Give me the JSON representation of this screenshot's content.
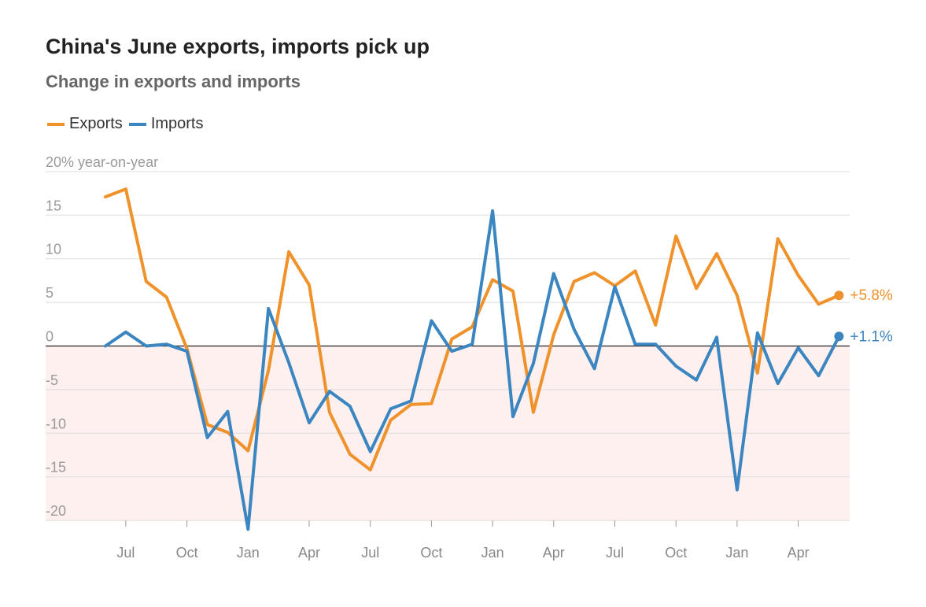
{
  "title": "China's June exports, imports pick up",
  "subtitle": "Change in exports and imports",
  "legend": {
    "exports": "Exports",
    "imports": "Imports"
  },
  "colors": {
    "exports": "#f0922b",
    "imports": "#3b86c0",
    "negative_band": "#fdf0ef",
    "zero_line": "#222222",
    "grid": "#dddddd"
  },
  "end_labels": {
    "exports": "+5.8%",
    "imports": "+1.1%"
  },
  "chart_data": {
    "type": "line",
    "ylabel": "20% year-on-year",
    "ylim": [
      -21,
      20
    ],
    "yticks": [
      {
        "value": 20,
        "label": "20% year-on-year"
      },
      {
        "value": 15,
        "label": "15"
      },
      {
        "value": 10,
        "label": "10"
      },
      {
        "value": 5,
        "label": "5"
      },
      {
        "value": 0,
        "label": "0"
      },
      {
        "value": -5,
        "label": "-5"
      },
      {
        "value": -10,
        "label": "-10"
      },
      {
        "value": -15,
        "label": "-15"
      },
      {
        "value": -20,
        "label": "-20"
      }
    ],
    "x": [
      "2022-06",
      "2022-07",
      "2022-08",
      "2022-09",
      "2022-10",
      "2022-11",
      "2022-12",
      "2023-01",
      "2023-02",
      "2023-03",
      "2023-04",
      "2023-05",
      "2023-06",
      "2023-07",
      "2023-08",
      "2023-09",
      "2023-10",
      "2023-11",
      "2023-12",
      "2024-01",
      "2024-02",
      "2024-03",
      "2024-04",
      "2024-05",
      "2024-06",
      "2024-07",
      "2024-08",
      "2024-09",
      "2024-10",
      "2024-11",
      "2024-12",
      "2025-01",
      "2025-02",
      "2025-03",
      "2025-04",
      "2025-05",
      "2025-06"
    ],
    "xticks": [
      {
        "x": "2022-07",
        "label": "Jul"
      },
      {
        "x": "2022-10",
        "label": "Oct"
      },
      {
        "x": "2023-01",
        "label": "Jan"
      },
      {
        "x": "2023-04",
        "label": "Apr"
      },
      {
        "x": "2023-07",
        "label": "Jul"
      },
      {
        "x": "2023-10",
        "label": "Oct"
      },
      {
        "x": "2024-01",
        "label": "Jan"
      },
      {
        "x": "2024-04",
        "label": "Apr"
      },
      {
        "x": "2024-07",
        "label": "Jul"
      },
      {
        "x": "2024-10",
        "label": "Oct"
      },
      {
        "x": "2025-01",
        "label": "Jan"
      },
      {
        "x": "2025-04",
        "label": "Apr"
      }
    ],
    "series": [
      {
        "name": "Exports",
        "color": "#f0922b",
        "values": [
          17.1,
          18.0,
          7.4,
          5.6,
          -0.3,
          -9.0,
          -9.9,
          -12.0,
          -2.8,
          10.8,
          7.0,
          -7.6,
          -12.4,
          -14.2,
          -8.5,
          -6.7,
          -6.6,
          0.8,
          2.2,
          7.6,
          6.3,
          -7.6,
          1.3,
          7.4,
          8.4,
          6.9,
          8.6,
          2.4,
          12.6,
          6.6,
          10.6,
          5.8,
          -3.1,
          12.3,
          8.1,
          4.8,
          5.8
        ]
      },
      {
        "name": "Imports",
        "color": "#3b86c0",
        "values": [
          0.0,
          1.6,
          0.0,
          0.2,
          -0.6,
          -10.5,
          -7.5,
          -21.0,
          4.3,
          -1.9,
          -8.8,
          -5.2,
          -6.9,
          -12.1,
          -7.2,
          -6.3,
          2.9,
          -0.6,
          0.2,
          15.5,
          -8.1,
          -2.0,
          8.3,
          1.9,
          -2.6,
          6.8,
          0.2,
          0.2,
          -2.3,
          -3.9,
          1.0,
          -16.5,
          1.5,
          -4.3,
          -0.2,
          -3.4,
          1.1
        ]
      }
    ]
  }
}
